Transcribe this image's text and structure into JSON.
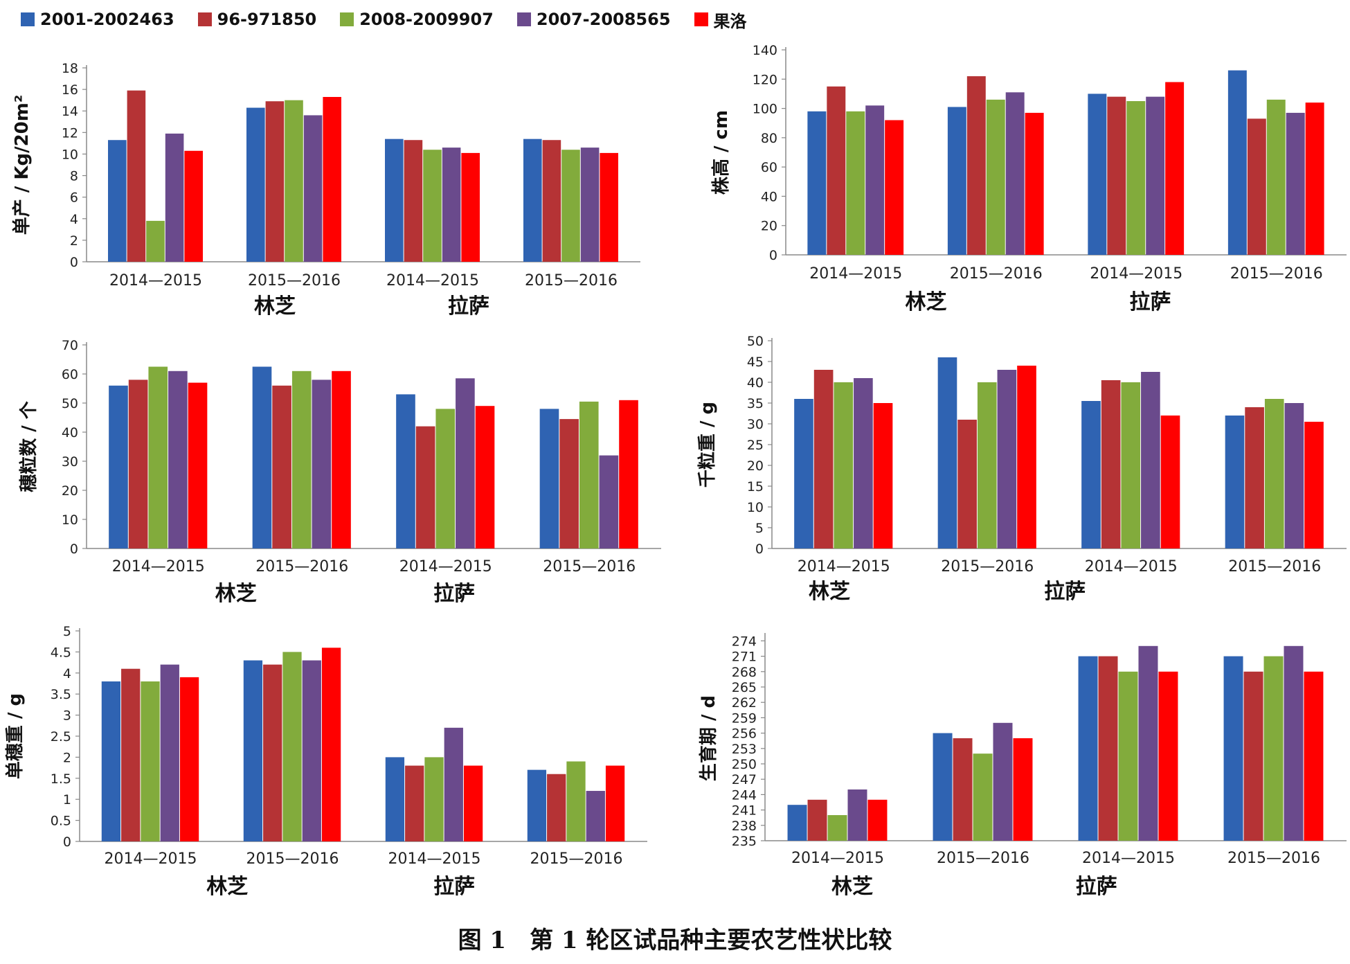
{
  "legend": [
    {
      "name": "2001-2002463",
      "color": "#2f63b2"
    },
    {
      "name": "96-971850",
      "color": "#b53335"
    },
    {
      "name": "2008-2009907",
      "color": "#82ab3c"
    },
    {
      "name": "2007-2008565",
      "color": "#6a4a8c"
    },
    {
      "name": "果洛",
      "color": "#ff0000"
    }
  ],
  "caption": "图 1　第 1 轮区试品种主要农艺性状比较",
  "chart_data": [
    {
      "type": "bar",
      "ylabel": "单产 / Kg/20m²",
      "ylim": [
        0,
        18
      ],
      "yticks": [
        0,
        2,
        4,
        6,
        8,
        10,
        12,
        14,
        16,
        18
      ],
      "categories": [
        "2014—2015",
        "2015—2016",
        "2014—2015",
        "2015—2016"
      ],
      "locations": [
        "林芝",
        "拉萨"
      ],
      "series": [
        {
          "name": "2001-2002463",
          "values": [
            11.3,
            14.3,
            11.4,
            11.4
          ]
        },
        {
          "name": "96-971850",
          "values": [
            15.9,
            14.9,
            11.3,
            11.3
          ]
        },
        {
          "name": "2008-2009907",
          "values": [
            3.8,
            15.0,
            10.4,
            10.4
          ]
        },
        {
          "name": "2007-2008565",
          "values": [
            11.9,
            13.6,
            10.6,
            10.6
          ]
        },
        {
          "name": "果洛",
          "values": [
            10.3,
            15.3,
            10.1,
            10.1
          ]
        }
      ]
    },
    {
      "type": "bar",
      "ylabel": "株高 / cm",
      "ylim": [
        0,
        140
      ],
      "yticks": [
        0,
        20,
        40,
        60,
        80,
        100,
        120,
        140
      ],
      "categories": [
        "2014—2015",
        "2015—2016",
        "2014—2015",
        "2015—2016"
      ],
      "locations": [
        "林芝",
        "拉萨"
      ],
      "series": [
        {
          "name": "2001-2002463",
          "values": [
            98,
            101,
            110,
            126
          ]
        },
        {
          "name": "96-971850",
          "values": [
            115,
            122,
            108,
            93
          ]
        },
        {
          "name": "2008-2009907",
          "values": [
            98,
            106,
            105,
            106
          ]
        },
        {
          "name": "2007-2008565",
          "values": [
            102,
            111,
            108,
            97
          ]
        },
        {
          "name": "果洛",
          "values": [
            92,
            97,
            118,
            104
          ]
        }
      ]
    },
    {
      "type": "bar",
      "ylabel": "穗粒数 / 个",
      "ylim": [
        0,
        70
      ],
      "yticks": [
        0,
        10,
        20,
        30,
        40,
        50,
        60,
        70
      ],
      "categories": [
        "2014—2015",
        "2015—2016",
        "2014—2015",
        "2015—2016"
      ],
      "locations": [
        "林芝",
        "拉萨"
      ],
      "series": [
        {
          "name": "2001-2002463",
          "values": [
            56,
            62.5,
            53,
            48
          ]
        },
        {
          "name": "96-971850",
          "values": [
            58,
            56,
            42,
            44.5
          ]
        },
        {
          "name": "2008-2009907",
          "values": [
            62.5,
            61,
            48,
            50.5
          ]
        },
        {
          "name": "2007-2008565",
          "values": [
            61,
            58,
            58.5,
            32
          ]
        },
        {
          "name": "果洛",
          "values": [
            57,
            61,
            49,
            51
          ]
        }
      ]
    },
    {
      "type": "bar",
      "ylabel": "千粒重 / g",
      "ylim": [
        0,
        50
      ],
      "yticks": [
        0,
        5,
        10,
        15,
        20,
        25,
        30,
        35,
        40,
        45,
        50
      ],
      "categories": [
        "2014—2015",
        "2015—2016",
        "2014—2015",
        "2015—2016"
      ],
      "locations": [
        "林芝",
        "拉萨"
      ],
      "series": [
        {
          "name": "2001-2002463",
          "values": [
            36,
            46,
            35.5,
            32
          ]
        },
        {
          "name": "96-971850",
          "values": [
            43,
            31,
            40.5,
            34
          ]
        },
        {
          "name": "2008-2009907",
          "values": [
            40,
            40,
            40,
            36
          ]
        },
        {
          "name": "2007-2008565",
          "values": [
            41,
            43,
            42.5,
            35
          ]
        },
        {
          "name": "果洛",
          "values": [
            35,
            44,
            32,
            30.5
          ]
        }
      ]
    },
    {
      "type": "bar",
      "ylabel": "单穗重 / g",
      "ylim": [
        0,
        5
      ],
      "yticks": [
        0,
        0.5,
        1,
        1.5,
        2,
        2.5,
        3,
        3.5,
        4,
        4.5,
        5
      ],
      "categories": [
        "2014—2015",
        "2015—2016",
        "2014—2015",
        "2015—2016"
      ],
      "locations": [
        "林芝",
        "拉萨"
      ],
      "series": [
        {
          "name": "2001-2002463",
          "values": [
            3.8,
            4.3,
            2.0,
            1.7
          ]
        },
        {
          "name": "96-971850",
          "values": [
            4.1,
            4.2,
            1.8,
            1.6
          ]
        },
        {
          "name": "2008-2009907",
          "values": [
            3.8,
            4.5,
            2.0,
            1.9
          ]
        },
        {
          "name": "2007-2008565",
          "values": [
            4.2,
            4.3,
            2.7,
            1.2
          ]
        },
        {
          "name": "果洛",
          "values": [
            3.9,
            4.6,
            1.8,
            1.8
          ]
        }
      ]
    },
    {
      "type": "bar",
      "ylabel": "生育期 / d",
      "ylim": [
        235,
        275
      ],
      "yticks": [
        235,
        238,
        241,
        244,
        247,
        250,
        253,
        256,
        259,
        262,
        265,
        268,
        271,
        274
      ],
      "categories": [
        "2014—2015",
        "2015—2016",
        "2014—2015",
        "2015—2016"
      ],
      "locations": [
        "林芝",
        "拉萨"
      ],
      "series": [
        {
          "name": "2001-2002463",
          "values": [
            242,
            256,
            271,
            271
          ]
        },
        {
          "name": "96-971850",
          "values": [
            243,
            255,
            271,
            268
          ]
        },
        {
          "name": "2008-2009907",
          "values": [
            240,
            252,
            268,
            271
          ]
        },
        {
          "name": "2007-2008565",
          "values": [
            245,
            258,
            273,
            273
          ]
        },
        {
          "name": "果洛",
          "values": [
            243,
            255,
            268,
            268
          ]
        }
      ]
    }
  ]
}
